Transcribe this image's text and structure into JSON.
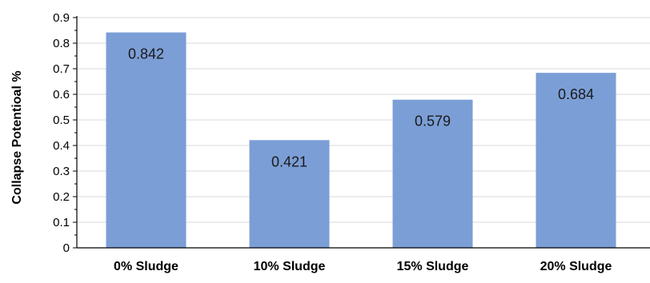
{
  "chart_data": {
    "type": "bar",
    "categories": [
      "0% Sludge",
      "10% Sludge",
      "15% Sludge",
      "20% Sludge"
    ],
    "values": [
      0.842,
      0.421,
      0.579,
      0.684
    ],
    "value_labels": [
      "0.842",
      "0.421",
      "0.579",
      "0.684"
    ],
    "title": "",
    "xlabel": "",
    "ylabel": "Collapse Potentioal %",
    "ylim": [
      0,
      0.9
    ],
    "yticks": [
      "0",
      "0.1",
      "0.2",
      "0.3",
      "0.4",
      "0.5",
      "0.6",
      "0.7",
      "0.8",
      "0.9"
    ],
    "bar_color": "#7b9ed6",
    "grid": true,
    "legend": "none"
  }
}
